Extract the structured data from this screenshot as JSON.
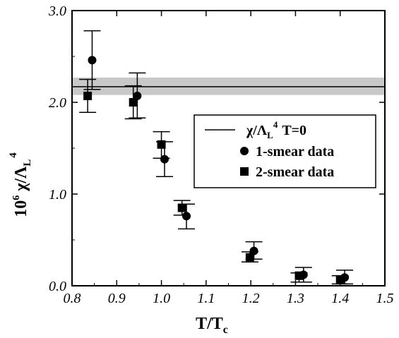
{
  "chart_data": {
    "type": "scatter",
    "xlabel": "T/T",
    "xlabel_sub": "c",
    "ylabel_prefix": "10",
    "ylabel_exp": "6",
    "ylabel_main": "χ/Λ",
    "ylabel_sub": "L",
    "ylabel_sup": "4",
    "xlim": [
      0.8,
      1.5
    ],
    "ylim": [
      0.0,
      3.0
    ],
    "x_ticks": [
      0.8,
      0.9,
      1.0,
      1.1,
      1.2,
      1.3,
      1.4,
      1.5
    ],
    "x_tick_labels": [
      "0.8",
      "0.9",
      "1.0",
      "1.1",
      "1.2",
      "1.3",
      "1.4",
      "1.5"
    ],
    "y_ticks": [
      0.0,
      1.0,
      2.0,
      3.0
    ],
    "y_tick_labels": [
      "0.0",
      "1.0",
      "2.0",
      "3.0"
    ],
    "grid": false,
    "legend_placement": "center-right",
    "reference_line": {
      "name": "χ/Λ",
      "name_sub": "L",
      "name_sup": "4",
      "name_suffix": "T=0",
      "value": 2.17,
      "band": [
        2.08,
        2.27
      ],
      "color": "#000000",
      "band_color": "#c8c8c8"
    },
    "series": [
      {
        "name": "1-smear data",
        "marker": "circle",
        "color": "#000000",
        "points": [
          {
            "x": 0.845,
            "y": 2.46,
            "lo": 2.14,
            "hi": 2.78
          },
          {
            "x": 0.946,
            "y": 2.07,
            "lo": 1.83,
            "hi": 2.32
          },
          {
            "x": 1.007,
            "y": 1.38,
            "lo": 1.19,
            "hi": 1.57
          },
          {
            "x": 1.056,
            "y": 0.76,
            "lo": 0.62,
            "hi": 0.89
          },
          {
            "x": 1.207,
            "y": 0.38,
            "lo": 0.29,
            "hi": 0.48
          },
          {
            "x": 1.318,
            "y": 0.12,
            "lo": 0.04,
            "hi": 0.2
          },
          {
            "x": 1.41,
            "y": 0.09,
            "lo": 0.02,
            "hi": 0.17
          }
        ]
      },
      {
        "name": "2-smear data",
        "marker": "square",
        "color": "#000000",
        "points": [
          {
            "x": 0.835,
            "y": 2.07,
            "lo": 1.89,
            "hi": 2.25
          },
          {
            "x": 0.937,
            "y": 2.0,
            "lo": 1.82,
            "hi": 2.18
          },
          {
            "x": 1.0,
            "y": 1.54,
            "lo": 1.39,
            "hi": 1.68
          },
          {
            "x": 1.046,
            "y": 0.85,
            "lo": 0.77,
            "hi": 0.93
          },
          {
            "x": 1.198,
            "y": 0.31,
            "lo": 0.26,
            "hi": 0.37
          },
          {
            "x": 1.308,
            "y": 0.11,
            "lo": 0.04,
            "hi": 0.14
          },
          {
            "x": 1.4,
            "y": 0.07,
            "lo": 0.02,
            "hi": 0.11
          }
        ]
      }
    ]
  }
}
